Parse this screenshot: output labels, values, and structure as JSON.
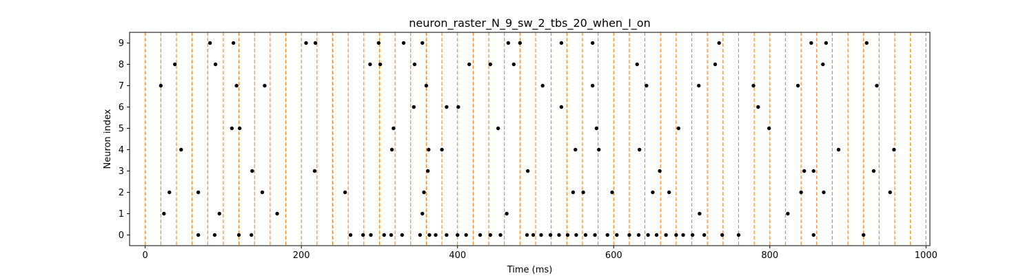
{
  "chart_data": {
    "type": "scatter",
    "title": "neuron_raster_N_9_sw_2_tbs_20_when_I_on",
    "xlabel": "Time (ms)",
    "ylabel": "Neuron index",
    "xlim": [
      -20,
      1005
    ],
    "ylim": [
      -0.5,
      9.5
    ],
    "x_ticks": [
      0,
      200,
      400,
      600,
      800,
      1000
    ],
    "y_ticks": [
      0,
      1,
      2,
      3,
      4,
      5,
      6,
      7,
      8,
      9
    ],
    "grid": false,
    "legend": "none",
    "marker_color": "#000000",
    "stim_line_color": "#ff7f0e",
    "stim_line_style": "dashed",
    "stim_times": [
      0,
      20,
      40,
      60,
      80,
      100,
      120,
      140,
      160,
      180,
      200,
      220,
      240,
      260,
      280,
      300,
      320,
      340,
      360,
      380,
      400,
      420,
      440,
      460,
      480,
      500,
      520,
      540,
      560,
      580,
      600,
      620,
      640,
      660,
      680,
      700,
      720,
      740,
      760,
      780,
      800,
      820,
      840,
      860,
      880,
      900,
      920,
      940,
      960,
      980,
      1000
    ],
    "spikes": [
      {
        "neuron": 9,
        "times": [
          83,
          113,
          206,
          218,
          299,
          331,
          355,
          465,
          480,
          533,
          573,
          735,
          853,
          872,
          924
        ]
      },
      {
        "neuron": 8,
        "times": [
          38,
          90,
          288,
          301,
          345,
          415,
          442,
          472,
          630,
          730,
          868
        ]
      },
      {
        "neuron": 7,
        "times": [
          20,
          117,
          153,
          360,
          509,
          573,
          642,
          709,
          779,
          836,
          937
        ]
      },
      {
        "neuron": 6,
        "times": [
          344,
          386,
          401,
          533,
          785
        ]
      },
      {
        "neuron": 5,
        "times": [
          111,
          121,
          318,
          452,
          578,
          683,
          799
        ]
      },
      {
        "neuron": 4,
        "times": [
          46,
          316,
          363,
          380,
          551,
          581,
          633,
          888,
          959
        ]
      },
      {
        "neuron": 3,
        "times": [
          137,
          217,
          362,
          490,
          659,
          844,
          856,
          933
        ]
      },
      {
        "neuron": 2,
        "times": [
          31,
          68,
          150,
          256,
          357,
          548,
          561,
          598,
          650,
          671,
          840,
          869,
          954
        ]
      },
      {
        "neuron": 1,
        "times": [
          24,
          95,
          169,
          355,
          463,
          710,
          823
        ]
      },
      {
        "neuron": 0,
        "times": [
          68,
          89,
          120,
          136,
          263,
          279,
          289,
          306,
          315,
          329,
          352,
          364,
          372,
          386,
          400,
          411,
          429,
          442,
          455,
          489,
          497,
          507,
          519,
          530,
          541,
          552,
          564,
          576,
          592,
          604,
          620,
          632,
          644,
          655,
          667,
          680,
          689,
          701,
          716,
          739,
          760,
          856,
          920
        ]
      }
    ]
  }
}
